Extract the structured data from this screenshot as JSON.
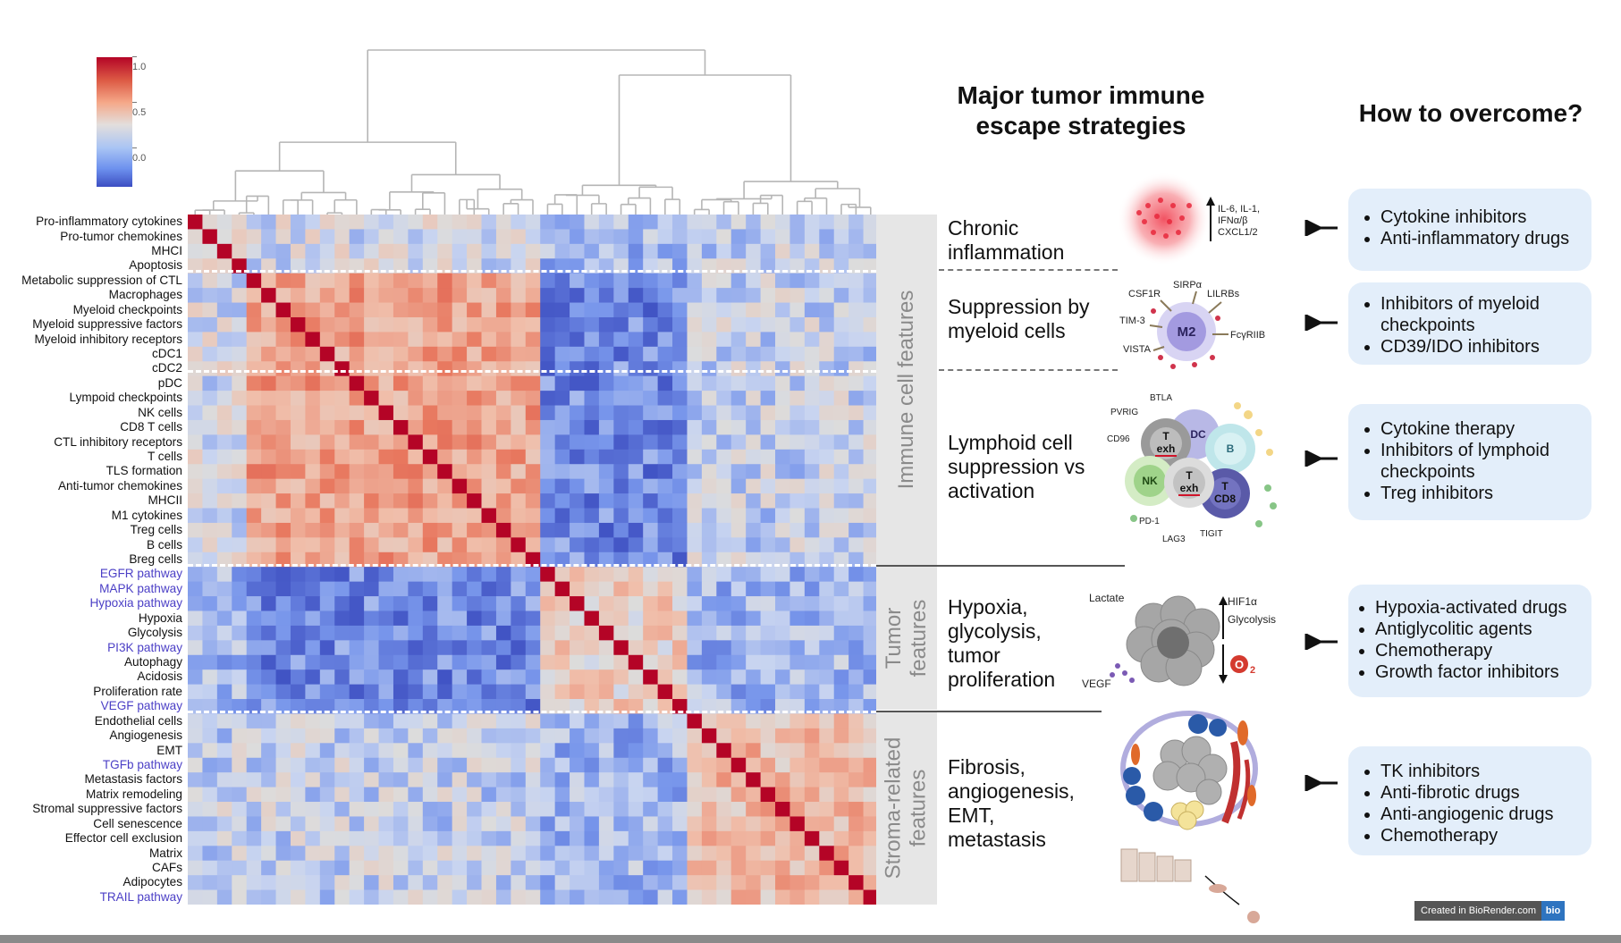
{
  "colorbar": {
    "ticks": [
      "1.0",
      "0.5",
      "0.0"
    ]
  },
  "rows": [
    {
      "label": "Pro-inflammatory cytokines",
      "pathway": false
    },
    {
      "label": "Pro-tumor chemokines",
      "pathway": false
    },
    {
      "label": "MHCI",
      "pathway": false
    },
    {
      "label": "Apoptosis",
      "pathway": false
    },
    {
      "label": "Metabolic suppression of CTL",
      "pathway": false
    },
    {
      "label": "Macrophages",
      "pathway": false
    },
    {
      "label": "Myeloid checkpoints",
      "pathway": false
    },
    {
      "label": "Myeloid suppressive factors",
      "pathway": false
    },
    {
      "label": "Myeloid inhibitory receptors",
      "pathway": false
    },
    {
      "label": "cDC1",
      "pathway": false
    },
    {
      "label": "cDC2",
      "pathway": false
    },
    {
      "label": "pDC",
      "pathway": false
    },
    {
      "label": "Lympoid checkpoints",
      "pathway": false
    },
    {
      "label": "NK cells",
      "pathway": false
    },
    {
      "label": "CD8 T cells",
      "pathway": false
    },
    {
      "label": "CTL inhibitory receptors",
      "pathway": false
    },
    {
      "label": "T cells",
      "pathway": false
    },
    {
      "label": "TLS formation",
      "pathway": false
    },
    {
      "label": "Anti-tumor chemokines",
      "pathway": false
    },
    {
      "label": "MHCII",
      "pathway": false
    },
    {
      "label": "M1 cytokines",
      "pathway": false
    },
    {
      "label": "Treg cells",
      "pathway": false
    },
    {
      "label": "B cells",
      "pathway": false
    },
    {
      "label": "Breg cells",
      "pathway": false
    },
    {
      "label": "EGFR pathway",
      "pathway": true
    },
    {
      "label": "MAPK pathway",
      "pathway": true
    },
    {
      "label": "Hypoxia pathway",
      "pathway": true
    },
    {
      "label": "Hypoxia",
      "pathway": false
    },
    {
      "label": "Glycolysis",
      "pathway": false
    },
    {
      "label": "PI3K pathway",
      "pathway": true
    },
    {
      "label": "Autophagy",
      "pathway": false
    },
    {
      "label": "Acidosis",
      "pathway": false
    },
    {
      "label": "Proliferation rate",
      "pathway": false
    },
    {
      "label": "VEGF pathway",
      "pathway": true
    },
    {
      "label": "Endothelial cells",
      "pathway": false
    },
    {
      "label": "Angiogenesis",
      "pathway": false
    },
    {
      "label": "EMT",
      "pathway": false
    },
    {
      "label": "TGFb pathway",
      "pathway": true
    },
    {
      "label": "Metastasis factors",
      "pathway": false
    },
    {
      "label": "Matrix remodeling",
      "pathway": false
    },
    {
      "label": "Stromal suppressive factors",
      "pathway": false
    },
    {
      "label": "Cell senescence",
      "pathway": false
    },
    {
      "label": "Effector cell exclusion",
      "pathway": false
    },
    {
      "label": "Matrix",
      "pathway": false
    },
    {
      "label": "CAFs",
      "pathway": false
    },
    {
      "label": "Adipocytes",
      "pathway": false
    },
    {
      "label": "TRAIL pathway",
      "pathway": true
    }
  ],
  "groups": {
    "immune": "Immune cell features",
    "tumor": "Tumor\nfeatures",
    "stroma": "Stroma-related\nfeatures"
  },
  "headers": {
    "strategies": "Major tumor immune\nescape strategies",
    "overcome": "How to overcome?"
  },
  "strategies": [
    "Chronic\ninflammation",
    "Suppression by\nmyeloid cells",
    "Lymphoid cell\nsuppression vs\nactivation",
    "Hypoxia,\nglycolysis,\ntumor\nproliferation",
    "Fibrosis,\nangiogenesis,\nEMT,\nmetastasis"
  ],
  "therapies": [
    [
      "Cytokine inhibitors",
      "Anti-inflammatory drugs"
    ],
    [
      "Inhibitors of myeloid checkpoints",
      "CD39/IDO inhibitors"
    ],
    [
      "Cytokine therapy",
      "Inhibitors of lymphoid checkpoints",
      "Treg inhibitors"
    ],
    [
      "Hypoxia-activated drugs",
      "Antiglycolitic agents",
      "Chemotherapy",
      "Growth factor inhibitors"
    ],
    [
      "TK inhibitors",
      "Anti-fibrotic drugs",
      "Anti-angiogenic drugs",
      "Chemotherapy"
    ]
  ],
  "illustrations": {
    "inflammation": [
      "IL-6, IL-1,",
      "IFNα/β",
      "CXCL1/2"
    ],
    "myeloid": {
      "center": "M2",
      "labels": [
        "CSF1R",
        "SIRPα",
        "LILRBs",
        "TIM-3",
        "FcγRIIB",
        "VISTA"
      ]
    },
    "lymphoid": {
      "cells": [
        "T\nexh",
        "DC",
        "B",
        "NK",
        "T\nexh",
        "T\nCD8"
      ],
      "labels": [
        "BTLA",
        "PVRIG",
        "CD96",
        "PD-1",
        "LAG3",
        "TIGIT"
      ]
    },
    "hypoxia": {
      "labels": [
        "Lactate",
        "HIF1α",
        "Glycolysis",
        "VEGF"
      ],
      "o2": "O",
      "o2sub": "2"
    }
  },
  "biorender": {
    "text": "Created in BioRender.com",
    "logo": "bio"
  },
  "colors": {
    "high": "#b40426",
    "mid": "#dddcdc",
    "low": "#3b4cc0",
    "box": "#e3eefa",
    "pathway_label": "#4b3fc6"
  }
}
